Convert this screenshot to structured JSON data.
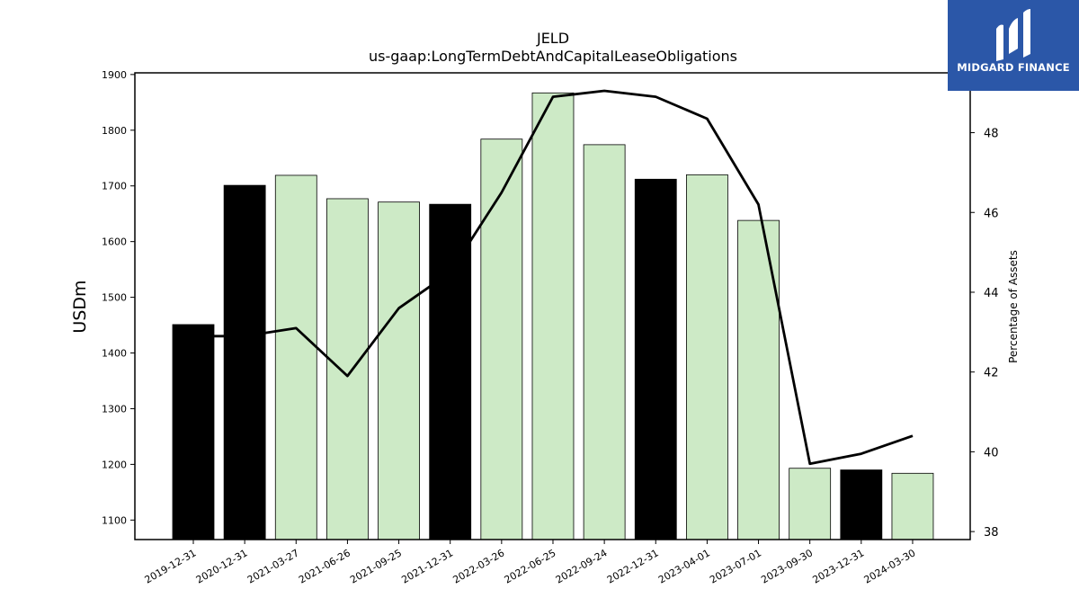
{
  "chart_data": {
    "type": "bar",
    "title": "JELD",
    "subtitle": "us-gaap:LongTermDebtAndCapitalLeaseObligations",
    "ylabel": "USDm",
    "y2label": "Percentage of Assets",
    "categories": [
      "2019-12-31",
      "2020-12-31",
      "2021-03-27",
      "2021-06-26",
      "2021-09-25",
      "2021-12-31",
      "2022-03-26",
      "2022-06-25",
      "2022-09-24",
      "2022-12-31",
      "2023-04-01",
      "2023-07-01",
      "2023-09-30",
      "2023-12-31",
      "2024-03-30"
    ],
    "values": [
      1451,
      1701,
      1719,
      1677,
      1671,
      1667,
      1784,
      1867,
      1774,
      1712,
      1720,
      1638,
      1193,
      1190,
      1184
    ],
    "bar_colors": [
      "#000000",
      "#000000",
      "#cdeac6",
      "#cdeac6",
      "#cdeac6",
      "#000000",
      "#cdeac6",
      "#cdeac6",
      "#cdeac6",
      "#000000",
      "#cdeac6",
      "#cdeac6",
      "#cdeac6",
      "#000000",
      "#cdeac6"
    ],
    "line_series": {
      "values": [
        42.9,
        42.9,
        43.1,
        41.9,
        43.6,
        44.5,
        46.5,
        48.9,
        49.05,
        48.9,
        48.35,
        46.2,
        39.7,
        39.95,
        40.4
      ]
    },
    "ylim": [
      1065,
      1903
    ],
    "y2lim": [
      37.8,
      49.5
    ],
    "yticks": [
      1100,
      1200,
      1300,
      1400,
      1500,
      1600,
      1700,
      1800,
      1900
    ],
    "y2ticks": [
      38,
      40,
      42,
      44,
      46,
      48
    ],
    "colors": {
      "highlight": "#000000",
      "normal": "#cdeac6",
      "line": "#000000"
    }
  },
  "logo": {
    "text": "MIDGARD FINANCE"
  }
}
